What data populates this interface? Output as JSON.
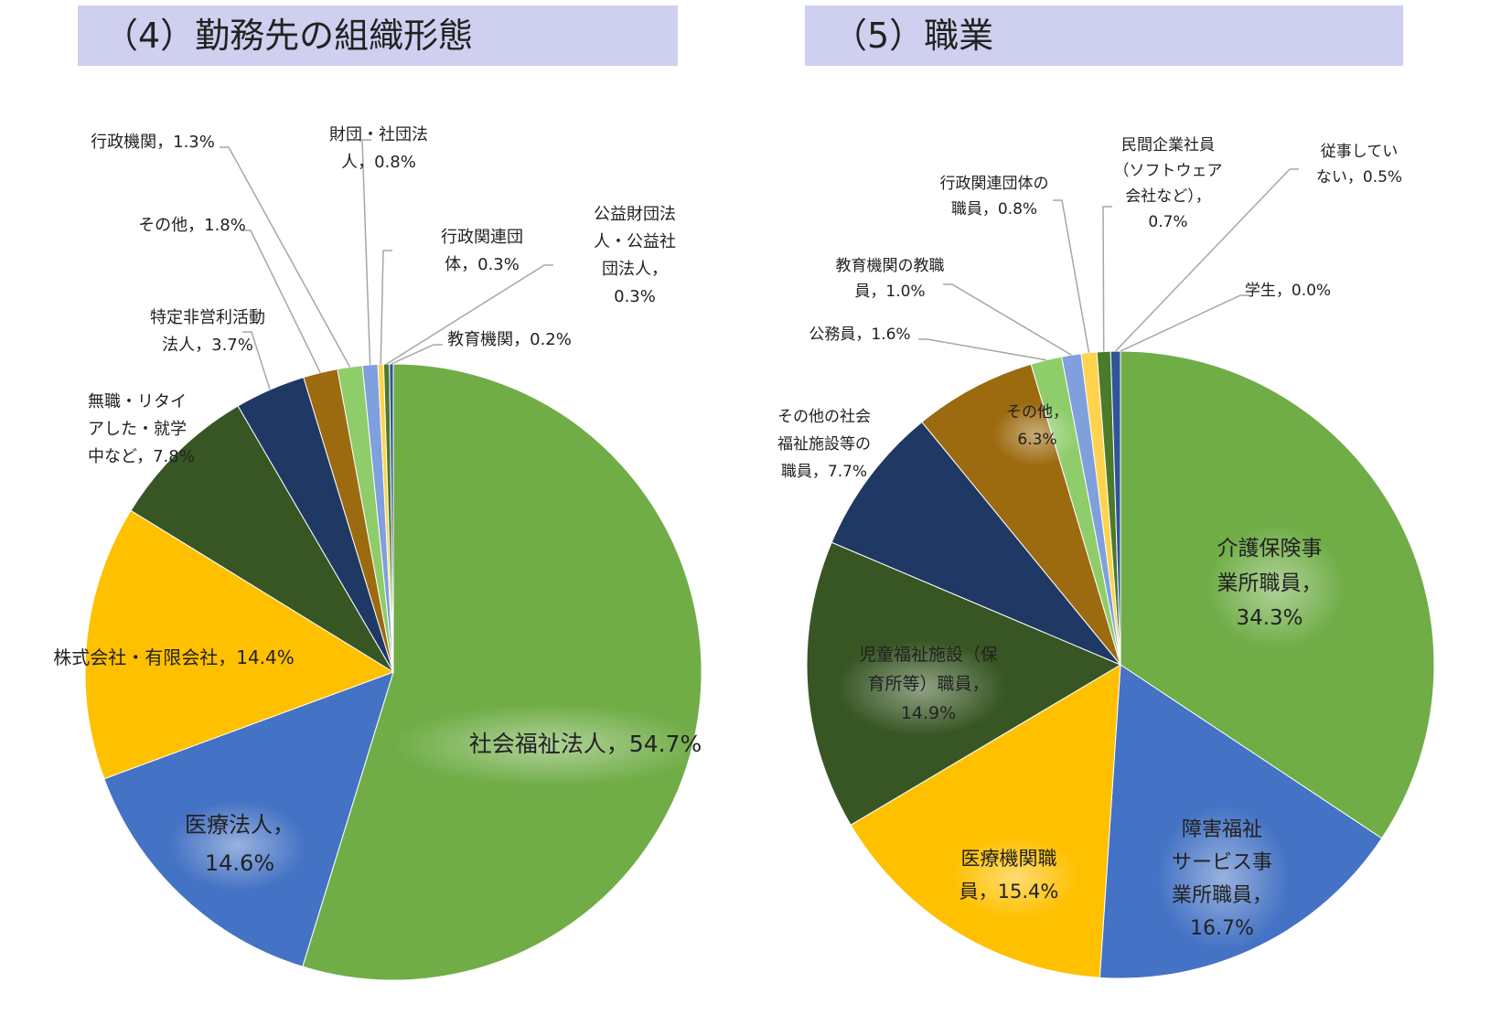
{
  "titles": {
    "left": "（4）勤務先の組織形態",
    "right": "（5）職業"
  },
  "chart_data": [
    {
      "type": "pie",
      "title": "（4）勤務先の組織形態",
      "categories": [
        "社会福祉法人",
        "医療法人",
        "株式会社・有限会社",
        "無職・リタイアした・就学中など",
        "特定非営利活動法人",
        "その他",
        "行政機関",
        "財団・社団法人",
        "行政関連団体",
        "公益財団法人・公益社団法人",
        "教育機関"
      ],
      "values": [
        54.7,
        14.6,
        14.4,
        7.8,
        3.7,
        1.8,
        1.3,
        0.8,
        0.3,
        0.3,
        0.2
      ],
      "colors": [
        "#70ad47",
        "#4472c4",
        "#ffc000",
        "#375623",
        "#203864",
        "#9c6a0f",
        "#8fcc6a",
        "#7f9fdd",
        "#ffd34d",
        "#4a7a2a",
        "#2f5597"
      ],
      "labels": [
        [
          "社会福祉法人，54.7%"
        ],
        [
          "医療法人，",
          "14.6%"
        ],
        [
          "株式会社・有限会社，14.4%"
        ],
        [
          "無職・リタイ",
          "アした・就学",
          "中など，7.8%"
        ],
        [
          "特定非営利活動",
          "法人，3.7%"
        ],
        [
          "その他，1.8%"
        ],
        [
          "行政機関，1.3%"
        ],
        [
          "財団・社団法",
          "人，0.8%"
        ],
        [
          "行政関連団",
          "体，0.3%"
        ],
        [
          "公益財団法",
          "人・公益社",
          "団法人，",
          "0.3%"
        ],
        [
          "教育機関，0.2%"
        ]
      ]
    },
    {
      "type": "pie",
      "title": "（5）職業",
      "categories": [
        "介護保険事業所職員",
        "障害福祉サービス事業所職員",
        "医療機関職員",
        "児童福祉施設（保育所等）職員",
        "その他の社会福祉施設等の職員",
        "その他",
        "公務員",
        "教育機関の教職員",
        "行政関連団体の職員",
        "民間企業社員（ソフトウェア会社など）",
        "従事していない",
        "学生"
      ],
      "values": [
        34.3,
        16.7,
        15.4,
        14.9,
        7.7,
        6.3,
        1.6,
        1.0,
        0.8,
        0.7,
        0.5,
        0.0
      ],
      "colors": [
        "#70ad47",
        "#4472c4",
        "#ffc000",
        "#375623",
        "#203864",
        "#9c6a0f",
        "#8fcc6a",
        "#7f9fdd",
        "#ffd34d",
        "#4a7a2a",
        "#2f5597",
        "#a0a0a0"
      ],
      "labels": [
        [
          "介護保険事",
          "業所職員，",
          "34.3%"
        ],
        [
          "障害福祉",
          "サービス事",
          "業所職員，",
          "16.7%"
        ],
        [
          "医療機関職",
          "員，15.4%"
        ],
        [
          "児童福祉施設（保",
          "育所等）職員，",
          "14.9%"
        ],
        [
          "その他の社会",
          "福祉施設等の",
          "職員，7.7%"
        ],
        [
          "その他，",
          "6.3%"
        ],
        [
          "公務員，1.6%"
        ],
        [
          "教育機関の教職",
          "員，1.0%"
        ],
        [
          "行政関連団体の",
          "職員，0.8%"
        ],
        [
          "民間企業社員",
          "（ソフトウェア",
          "会社など），",
          "0.7%"
        ],
        [
          "従事してい",
          "ない，0.5%"
        ],
        [
          "学生，0.0%"
        ]
      ]
    }
  ]
}
